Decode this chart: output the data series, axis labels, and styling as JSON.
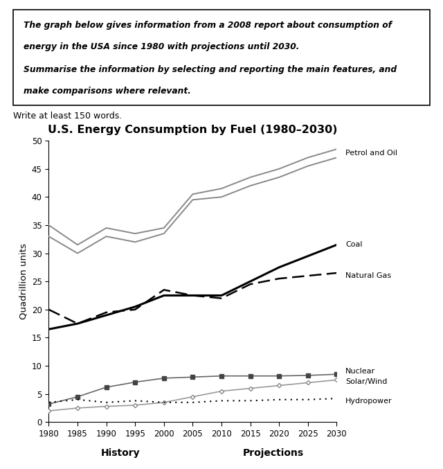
{
  "title": "U.S. Energy Consumption by Fuel (1980–2030)",
  "ylabel": "Quadrillion units",
  "years": [
    1980,
    1985,
    1990,
    1995,
    2000,
    2005,
    2010,
    2015,
    2020,
    2025,
    2030
  ],
  "petrol_oil_upper": [
    35,
    31.5,
    34.5,
    33.5,
    34.5,
    40.5,
    41.5,
    43.5,
    45.0,
    47.0,
    48.5
  ],
  "petrol_oil_lower": [
    33,
    30.0,
    33.0,
    32.0,
    33.5,
    39.5,
    40.0,
    42.0,
    43.5,
    45.5,
    47.0
  ],
  "coal": [
    16.5,
    17.5,
    19.0,
    20.5,
    22.5,
    22.5,
    22.5,
    25.0,
    27.5,
    29.5,
    31.5
  ],
  "natural_gas": [
    20.0,
    17.5,
    19.5,
    20.0,
    23.5,
    22.5,
    22.0,
    24.5,
    25.5,
    26.0,
    26.5
  ],
  "nuclear": [
    3.2,
    4.5,
    6.2,
    7.1,
    7.8,
    8.0,
    8.2,
    8.2,
    8.2,
    8.3,
    8.5
  ],
  "solar_wind": [
    2.0,
    2.5,
    2.8,
    3.0,
    3.5,
    4.5,
    5.5,
    6.0,
    6.5,
    7.0,
    7.5
  ],
  "hydropower": [
    3.5,
    4.0,
    3.5,
    3.8,
    3.5,
    3.5,
    3.8,
    3.8,
    4.0,
    4.0,
    4.2
  ],
  "box_text_para1_l1": "The graph below gives information from a 2008 report about consumption of",
  "box_text_para1_l2": "energy in the USA since 1980 with projections until 2030.",
  "box_text_para2_l1": "Summarise the information by selecting and reporting the main features, and",
  "box_text_para2_l2": "make comparisons where relevant.",
  "subtext": "Write at least 150 words.",
  "xlabel_history": "History",
  "xlabel_projections": "Projections",
  "ylim": [
    0,
    50
  ],
  "yticks": [
    0,
    5,
    10,
    15,
    20,
    25,
    30,
    35,
    40,
    45,
    50
  ]
}
